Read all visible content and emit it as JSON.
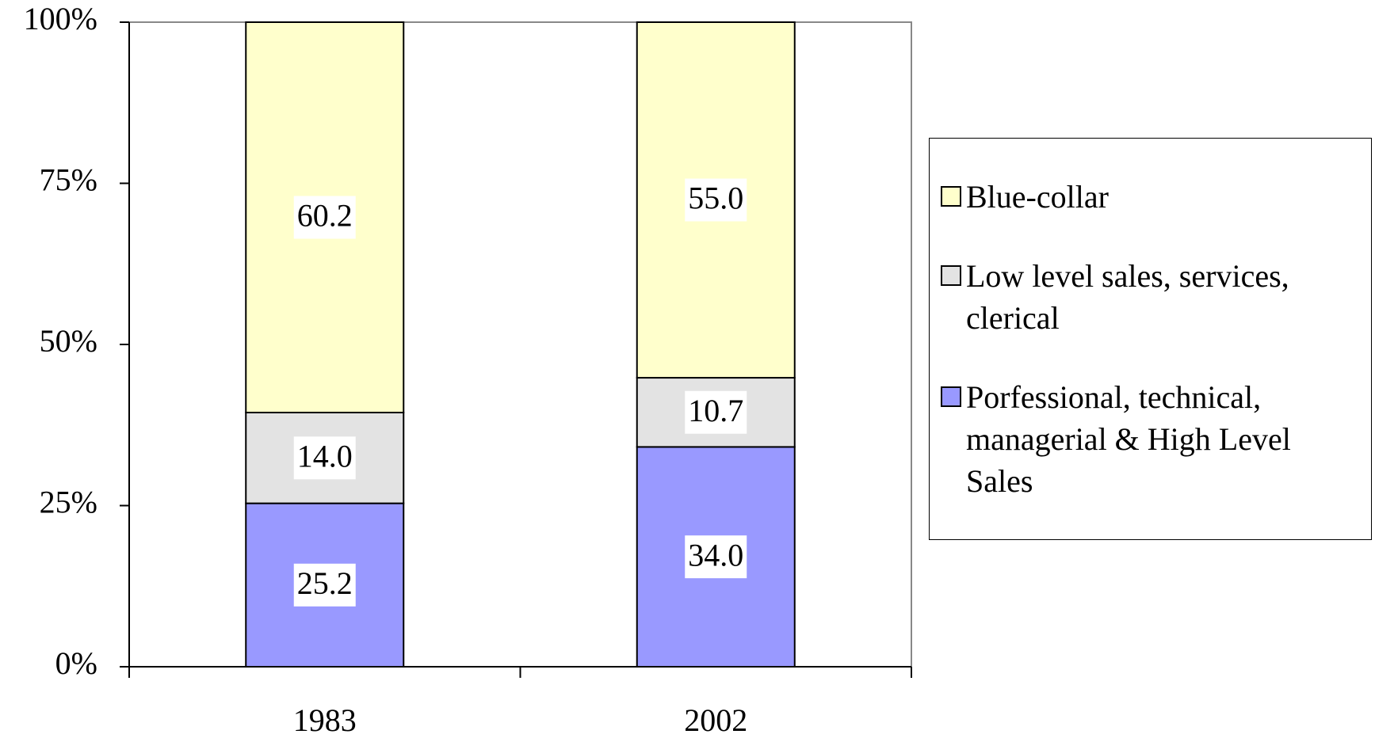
{
  "chart_data": {
    "type": "bar",
    "percent_stacked": true,
    "categories": [
      "1983",
      "2002"
    ],
    "series": [
      {
        "name": "Porfessional, technical, managerial & High Level Sales",
        "color": "#9999ff",
        "values": [
          25.2,
          34.0
        ],
        "value_labels": [
          "25.2",
          "34.0"
        ]
      },
      {
        "name": "Low level sales, services, clerical",
        "color": "#e3e3e3",
        "values": [
          14.0,
          10.7
        ],
        "value_labels": [
          "14.0",
          "10.7"
        ]
      },
      {
        "name": "Blue-collar",
        "color": "#ffffcc",
        "values": [
          60.2,
          55.0
        ],
        "value_labels": [
          "60.2",
          "55.0"
        ]
      }
    ],
    "ylim": [
      0,
      100
    ],
    "yticks": [
      {
        "value": 0,
        "label": "0%"
      },
      {
        "value": 25,
        "label": "25%"
      },
      {
        "value": 50,
        "label": "50%"
      },
      {
        "value": 75,
        "label": "75%"
      },
      {
        "value": 100,
        "label": "100%"
      }
    ],
    "legend": "right"
  }
}
